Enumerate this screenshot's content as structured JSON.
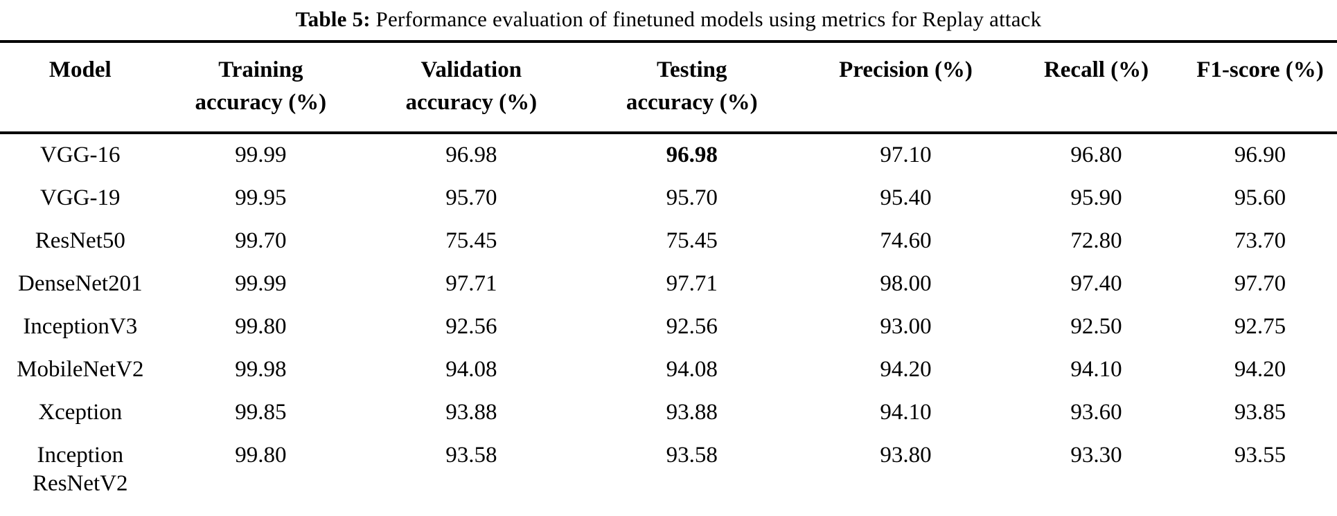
{
  "colors": {
    "text": "#000000",
    "background": "#ffffff",
    "rule": "#000000"
  },
  "caption": {
    "label": "Table 5:",
    "text": "Performance evaluation of finetuned models using metrics for Replay attack"
  },
  "table": {
    "headers": {
      "model": "Model",
      "training": "Training\naccuracy (%)",
      "validation": "Validation\naccuracy (%)",
      "testing": "Testing\naccuracy (%)",
      "precision": "Precision (%)",
      "recall": "Recall (%)",
      "f1": "F1-score (%)"
    },
    "rows": [
      {
        "model": "VGG-16",
        "training": "99.99",
        "validation": "96.98",
        "testing": "96.98",
        "precision": "97.10",
        "recall": "96.80",
        "f1": "96.90"
      },
      {
        "model": "VGG-19",
        "training": "99.95",
        "validation": "95.70",
        "testing": "95.70",
        "precision": "95.40",
        "recall": "95.90",
        "f1": "95.60"
      },
      {
        "model": "ResNet50",
        "training": "99.70",
        "validation": "75.45",
        "testing": "75.45",
        "precision": "74.60",
        "recall": "72.80",
        "f1": "73.70"
      },
      {
        "model": "DenseNet201",
        "training": "99.99",
        "validation": "97.71",
        "testing": "97.71",
        "precision": "98.00",
        "recall": "97.40",
        "f1": "97.70"
      },
      {
        "model": "InceptionV3",
        "training": "99.80",
        "validation": "92.56",
        "testing": "92.56",
        "precision": "93.00",
        "recall": "92.50",
        "f1": "92.75"
      },
      {
        "model": "MobileNetV2",
        "training": "99.98",
        "validation": "94.08",
        "testing": "94.08",
        "precision": "94.20",
        "recall": "94.10",
        "f1": "94.20"
      },
      {
        "model": "Xception",
        "training": "99.85",
        "validation": "93.88",
        "testing": "93.88",
        "precision": "94.10",
        "recall": "93.60",
        "f1": "93.85"
      },
      {
        "model": "Inception\nResNetV2",
        "training": "99.80",
        "validation": "93.58",
        "testing": "93.58",
        "precision": "93.80",
        "recall": "93.30",
        "f1": "93.55"
      }
    ]
  }
}
